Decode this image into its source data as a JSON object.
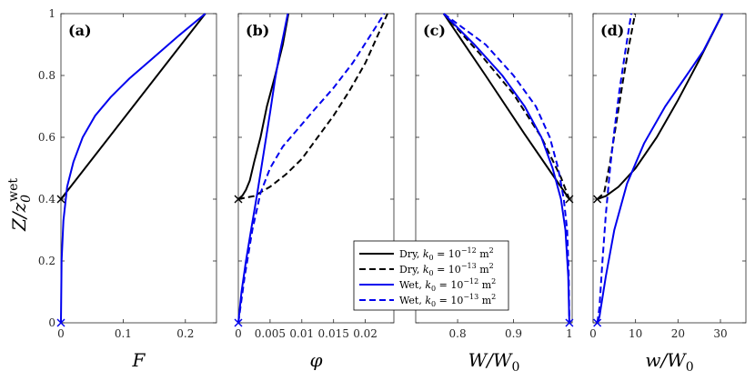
{
  "figure": {
    "ylabel": "Z/z0wet",
    "ylabel_main": "Z/z",
    "ylabel_sub": "0",
    "ylabel_sup": "wet"
  },
  "legend": {
    "location": "bottom-center",
    "entries": [
      {
        "label": "Dry, k0 = 10^-12 m^2",
        "text": "Dry, ",
        "k": "k",
        "k_sub": "0",
        "eq": " = 10",
        "exp": "−12",
        "unit": " m",
        "unit_exp": "2",
        "color": "#000000",
        "dash": false
      },
      {
        "label": "Dry, k0 = 10^-13 m^2",
        "text": "Dry, ",
        "k": "k",
        "k_sub": "0",
        "eq": " = 10",
        "exp": "−13",
        "unit": " m",
        "unit_exp": "2",
        "color": "#000000",
        "dash": true
      },
      {
        "label": "Wet, k0 = 10^-12 m^2",
        "text": "Wet, ",
        "k": "k",
        "k_sub": "0",
        "eq": " = 10",
        "exp": "−12",
        "unit": " m",
        "unit_exp": "2",
        "color": "#0000ee",
        "dash": false
      },
      {
        "label": "Wet, k0 = 10^-13 m^2",
        "text": "Wet, ",
        "k": "k",
        "k_sub": "0",
        "eq": " = 10",
        "exp": "−13",
        "unit": " m",
        "unit_exp": "2",
        "color": "#0000ee",
        "dash": true
      }
    ]
  },
  "colors": {
    "dry": "#000000",
    "wet": "#0000ee"
  },
  "chart_data": [
    {
      "type": "line",
      "panel": "(a)",
      "xlabel": "F",
      "ylabel": "Z/z0wet",
      "xlim": [
        0,
        0.25
      ],
      "ylim": [
        0,
        1
      ],
      "xticks": [
        0,
        0.1,
        0.2
      ],
      "xtick_labels": [
        "0",
        "0.1",
        "0.2"
      ],
      "yticks": [
        0,
        0.2,
        0.4,
        0.6,
        0.8,
        1
      ],
      "ytick_labels": [
        "0",
        "0.2",
        "0.4",
        "0.6",
        "0.8",
        "1"
      ],
      "series": [
        {
          "name": "Dry, k0 = 1e-12",
          "color": "#000000",
          "dash": false,
          "x": [
            0,
            0.232
          ],
          "y": [
            0.4,
            1.0
          ]
        },
        {
          "name": "Wet, k0 = 1e-12",
          "color": "#0000ee",
          "dash": false,
          "x": [
            0,
            0.001,
            0.004,
            0.01,
            0.02,
            0.035,
            0.055,
            0.08,
            0.11,
            0.15,
            0.19,
            0.232
          ],
          "y": [
            0,
            0.2,
            0.33,
            0.44,
            0.52,
            0.6,
            0.67,
            0.73,
            0.79,
            0.86,
            0.93,
            1.0
          ]
        }
      ],
      "markers": [
        {
          "x": 0,
          "y": 0.4,
          "color": "#000000",
          "symbol": "x"
        },
        {
          "x": 0,
          "y": 0,
          "color": "#0000ee",
          "symbol": "x"
        }
      ]
    },
    {
      "type": "line",
      "panel": "(b)",
      "xlabel": "φ",
      "ylabel": "",
      "xlim": [
        0,
        0.0245
      ],
      "ylim": [
        0,
        1
      ],
      "xticks": [
        0,
        0.005,
        0.01,
        0.015,
        0.02
      ],
      "xtick_labels": [
        "0",
        "0.005",
        "0.01",
        "0.015",
        "0.02"
      ],
      "yticks": [
        0,
        0.2,
        0.4,
        0.6,
        0.8,
        1
      ],
      "ytick_labels": [],
      "series": [
        {
          "name": "Dry, k0 = 1e-12",
          "color": "#000000",
          "dash": false,
          "x": [
            0,
            0.0006,
            0.0012,
            0.0018,
            0.0025,
            0.0035,
            0.0045,
            0.0058,
            0.007,
            0.0079
          ],
          "y": [
            0.4,
            0.41,
            0.43,
            0.46,
            0.52,
            0.6,
            0.7,
            0.8,
            0.9,
            1.0
          ]
        },
        {
          "name": "Dry, k0 = 1e-13",
          "color": "#000000",
          "dash": true,
          "x": [
            0,
            0.0025,
            0.005,
            0.0075,
            0.01,
            0.0125,
            0.015,
            0.0175,
            0.02,
            0.0235
          ],
          "y": [
            0.4,
            0.41,
            0.44,
            0.48,
            0.53,
            0.6,
            0.67,
            0.75,
            0.84,
            1.0
          ]
        },
        {
          "name": "Wet, k0 = 1e-12",
          "color": "#0000ee",
          "dash": false,
          "x": [
            0,
            0.0005,
            0.0012,
            0.002,
            0.003,
            0.004,
            0.005,
            0.0058,
            0.0065,
            0.0072,
            0.0078
          ],
          "y": [
            0,
            0.1,
            0.2,
            0.3,
            0.42,
            0.55,
            0.68,
            0.79,
            0.87,
            0.94,
            1.0
          ]
        },
        {
          "name": "Wet, k0 = 1e-13",
          "color": "#0000ee",
          "dash": true,
          "x": [
            0,
            0.001,
            0.0022,
            0.0035,
            0.005,
            0.007,
            0.0095,
            0.012,
            0.015,
            0.018,
            0.0205,
            0.023
          ],
          "y": [
            0,
            0.15,
            0.3,
            0.42,
            0.5,
            0.57,
            0.63,
            0.69,
            0.76,
            0.84,
            0.92,
            1.0
          ]
        }
      ],
      "markers": [
        {
          "x": 0,
          "y": 0.4,
          "color": "#000000",
          "symbol": "x"
        },
        {
          "x": 0,
          "y": 0,
          "color": "#0000ee",
          "symbol": "x"
        }
      ]
    },
    {
      "type": "line",
      "panel": "(c)",
      "xlabel": "W/W0",
      "ylabel": "",
      "xlim": [
        0.725,
        1.005
      ],
      "ylim": [
        0,
        1
      ],
      "xticks": [
        0.8,
        0.9,
        1
      ],
      "xtick_labels": [
        "0.8",
        "0.9",
        "1"
      ],
      "yticks": [
        0,
        0.2,
        0.4,
        0.6,
        0.8,
        1
      ],
      "ytick_labels": [],
      "series": [
        {
          "name": "Dry, k0 = 1e-12",
          "color": "#000000",
          "dash": false,
          "x": [
            0.775,
            0.85,
            0.92,
            1.0
          ],
          "y": [
            1.0,
            0.8,
            0.61,
            0.4
          ]
        },
        {
          "name": "Dry, k0 = 1e-13",
          "color": "#000000",
          "dash": true,
          "x": [
            0.775,
            0.84,
            0.9,
            0.95,
            0.985,
            1.0
          ],
          "y": [
            1.0,
            0.87,
            0.74,
            0.6,
            0.47,
            0.4
          ]
        },
        {
          "name": "Wet, k0 = 1e-12",
          "color": "#0000ee",
          "dash": false,
          "x": [
            0.775,
            0.83,
            0.88,
            0.92,
            0.95,
            0.97,
            0.985,
            0.993,
            0.998,
            1.0
          ],
          "y": [
            1.0,
            0.9,
            0.8,
            0.7,
            0.6,
            0.5,
            0.4,
            0.3,
            0.15,
            0.0
          ]
        },
        {
          "name": "Wet, k0 = 1e-13",
          "color": "#0000ee",
          "dash": true,
          "x": [
            0.775,
            0.85,
            0.9,
            0.94,
            0.965,
            0.98,
            0.99,
            0.996,
            0.999,
            1.0
          ],
          "y": [
            1.0,
            0.9,
            0.8,
            0.7,
            0.6,
            0.5,
            0.4,
            0.3,
            0.15,
            0.0
          ]
        }
      ],
      "markers": [
        {
          "x": 1,
          "y": 0.4,
          "color": "#000000",
          "symbol": "x"
        },
        {
          "x": 1,
          "y": 0,
          "color": "#0000ee",
          "symbol": "x"
        }
      ]
    },
    {
      "type": "line",
      "panel": "(d)",
      "xlabel": "w/W0",
      "ylabel": "",
      "xlim": [
        0,
        36
      ],
      "ylim": [
        0,
        1
      ],
      "xticks": [
        0,
        10,
        20,
        30
      ],
      "xtick_labels": [
        "0",
        "10",
        "20",
        "30"
      ],
      "yticks": [
        0,
        0.2,
        0.4,
        0.6,
        0.8,
        1
      ],
      "ytick_labels": [],
      "series": [
        {
          "name": "Dry, k0 = 1e-12",
          "color": "#000000",
          "dash": false,
          "x": [
            1.0,
            3.0,
            6.0,
            10.0,
            15.0,
            20.0,
            25.0,
            30.5
          ],
          "y": [
            0.4,
            0.41,
            0.44,
            0.5,
            0.6,
            0.72,
            0.85,
            1.0
          ]
        },
        {
          "name": "Dry, k0 = 1e-13",
          "color": "#000000",
          "dash": true,
          "x": [
            1.0,
            2.6,
            4.0,
            5.5,
            7.0,
            8.5,
            9.9
          ],
          "y": [
            0.4,
            0.42,
            0.52,
            0.65,
            0.78,
            0.9,
            1.0
          ]
        },
        {
          "name": "Wet, k0 = 1e-12",
          "color": "#0000ee",
          "dash": false,
          "x": [
            1.0,
            1.5,
            3.0,
            5.0,
            8.0,
            12.0,
            17.0,
            22.0,
            26.0,
            30.5
          ],
          "y": [
            0.0,
            0.02,
            0.15,
            0.3,
            0.45,
            0.58,
            0.7,
            0.8,
            0.88,
            1.0
          ]
        },
        {
          "name": "Wet, k0 = 1e-13",
          "color": "#0000ee",
          "dash": true,
          "x": [
            1.0,
            1.5,
            2.2,
            3.0,
            4.0,
            5.0,
            6.2,
            7.5,
            9.0
          ],
          "y": [
            0.0,
            0.05,
            0.2,
            0.35,
            0.5,
            0.62,
            0.75,
            0.87,
            1.0
          ]
        }
      ],
      "markers": [
        {
          "x": 1,
          "y": 0.4,
          "color": "#000000",
          "symbol": "x"
        },
        {
          "x": 1,
          "y": 0,
          "color": "#0000ee",
          "symbol": "x"
        }
      ]
    }
  ]
}
